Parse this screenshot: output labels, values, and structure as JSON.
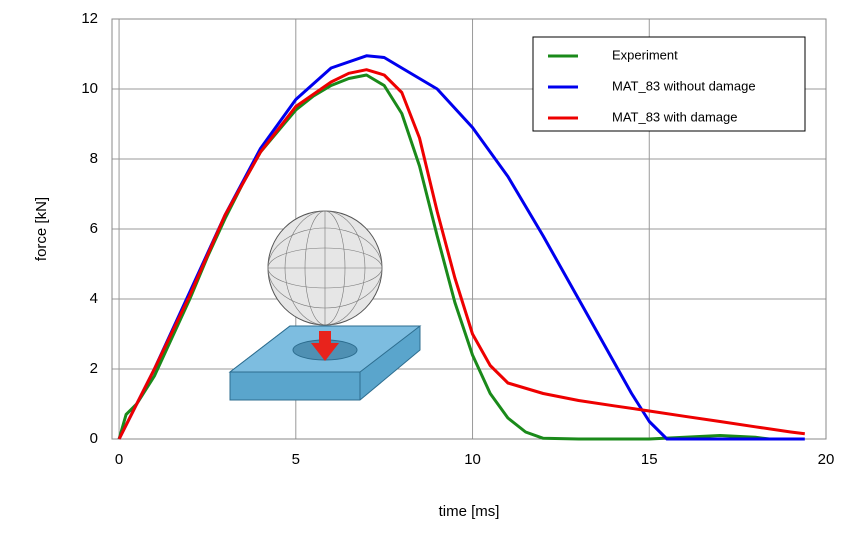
{
  "chart_data": {
    "type": "line",
    "xlabel": "time [ms]",
    "ylabel": "force [kN]",
    "xlim": [
      -0.2,
      20
    ],
    "ylim": [
      0,
      12
    ],
    "xticks": [
      0,
      5,
      10,
      15,
      20
    ],
    "yticks": [
      0,
      2,
      4,
      6,
      8,
      10,
      12
    ],
    "grid": true,
    "legend": "upper right",
    "series": [
      {
        "name": "Experiment",
        "color": "#1a8a1a",
        "x": [
          0,
          0.2,
          0.5,
          1,
          1.5,
          2,
          2.5,
          3,
          3.5,
          4,
          4.5,
          5,
          5.5,
          6,
          6.5,
          7,
          7.5,
          8,
          8.5,
          9,
          9.5,
          10,
          10.5,
          11,
          11.5,
          12,
          13,
          15,
          16,
          17,
          18,
          18.4
        ],
        "values": [
          0,
          0.7,
          1,
          1.8,
          2.9,
          4,
          5.2,
          6.3,
          7.3,
          8.2,
          8.8,
          9.4,
          9.8,
          10.1,
          10.3,
          10.4,
          10.1,
          9.3,
          7.8,
          5.8,
          3.9,
          2.4,
          1.3,
          0.6,
          0.2,
          0.02,
          0,
          0,
          0.05,
          0.1,
          0.05,
          0
        ]
      },
      {
        "name": "MAT_83 without damage",
        "color": "#0000ee",
        "x": [
          0,
          0.5,
          1,
          2,
          3,
          4,
          5,
          6,
          7,
          7.5,
          8,
          9,
          10,
          11,
          12,
          13,
          14,
          14.5,
          15,
          15.5,
          17,
          19.4
        ],
        "values": [
          0,
          1,
          2,
          4.2,
          6.4,
          8.3,
          9.7,
          10.6,
          10.95,
          10.9,
          10.6,
          10,
          8.9,
          7.5,
          5.8,
          4,
          2.2,
          1.3,
          0.5,
          0,
          0,
          0
        ]
      },
      {
        "name": "MAT_83 with damage",
        "color": "#ee0000",
        "x": [
          0,
          0.5,
          1,
          2,
          3,
          4,
          5,
          6,
          6.5,
          7,
          7.5,
          8,
          8.5,
          9,
          9.5,
          10,
          10.5,
          11,
          12,
          13,
          14,
          15,
          16,
          17,
          18,
          19,
          19.4
        ],
        "values": [
          0,
          1,
          2,
          4.1,
          6.4,
          8.2,
          9.5,
          10.2,
          10.45,
          10.55,
          10.4,
          9.9,
          8.6,
          6.5,
          4.6,
          3,
          2.1,
          1.6,
          1.3,
          1.1,
          0.95,
          0.8,
          0.65,
          0.5,
          0.35,
          0.2,
          0.15
        ]
      }
    ]
  }
}
